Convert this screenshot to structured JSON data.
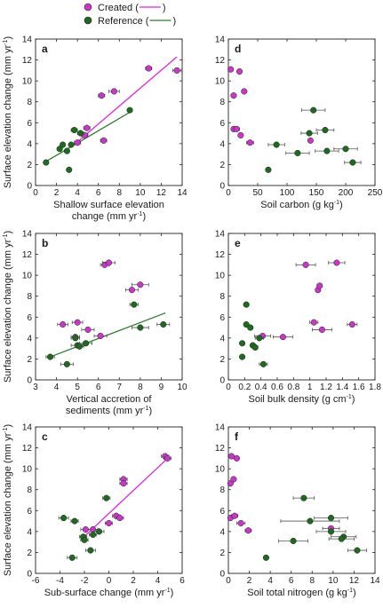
{
  "legend": {
    "items": [
      {
        "label": "Created (",
        "color": "#c837c8",
        "line": "#e026e0"
      },
      {
        "label": "Reference (",
        "color": "#1e6a1e",
        "line": "#2f7a2f"
      }
    ],
    "close": ")"
  },
  "colors": {
    "created": "#c837c8",
    "created_line": "#e026e0",
    "reference": "#1e6a1e",
    "reference_line": "#2f7a2f",
    "errorbar": "#555555"
  },
  "chart_data": [
    {
      "panel": "a",
      "type": "scatter",
      "xlabel": "Shallow surface elevation",
      "xlabel2": "change (mm yr",
      "ylabel": "Surface elevation change (mm yr",
      "xlim": [
        0,
        14
      ],
      "ylim": [
        0,
        14
      ],
      "xticks": [
        0,
        2,
        4,
        6,
        8,
        10,
        12,
        14
      ],
      "yticks": [
        0,
        2,
        4,
        6,
        8,
        10,
        12,
        14
      ],
      "series": [
        {
          "name": "Created",
          "points": [
            [
              4.0,
              4.1,
              0.3
            ],
            [
              4.9,
              5.5,
              0.3
            ],
            [
              4.7,
              4.8,
              0.3
            ],
            [
              6.5,
              4.3,
              0.3
            ],
            [
              6.3,
              8.6,
              0.3
            ],
            [
              7.5,
              9.0,
              0.5
            ],
            [
              10.8,
              11.2,
              0.3
            ],
            [
              13.5,
              11.0,
              0.4
            ]
          ],
          "fit": [
            [
              3.8,
              4.0
            ],
            [
              13.5,
              12.3
            ]
          ]
        },
        {
          "name": "Reference",
          "points": [
            [
              1.0,
              2.2,
              0.2
            ],
            [
              2.3,
              3.5,
              0.2
            ],
            [
              2.6,
              3.9,
              0.2
            ],
            [
              3.0,
              3.3,
              0.2
            ],
            [
              3.2,
              1.5,
              0.2
            ],
            [
              3.4,
              3.9,
              0.2
            ],
            [
              3.7,
              5.3,
              0.3
            ],
            [
              4.3,
              5.0,
              0.3
            ],
            [
              9.0,
              7.2,
              0.2
            ]
          ],
          "fit": [
            [
              1.0,
              2.3
            ],
            [
              9.0,
              7.0
            ]
          ]
        }
      ]
    },
    {
      "panel": "d",
      "type": "scatter",
      "xlabel": "Soil carbon (g kg",
      "xlim": [
        0,
        250
      ],
      "ylim": [
        0,
        14
      ],
      "xticks": [
        0,
        50,
        100,
        150,
        200,
        250
      ],
      "yticks": [
        0,
        2,
        4,
        6,
        8,
        10,
        12,
        14
      ],
      "series": [
        {
          "name": "Created",
          "points": [
            [
              4,
              11.1,
              3
            ],
            [
              19,
              10.9,
              3
            ],
            [
              9,
              8.6,
              3
            ],
            [
              27,
              9.0,
              4
            ],
            [
              9,
              5.4,
              3
            ],
            [
              14,
              5.4,
              5
            ],
            [
              21,
              4.8,
              4
            ],
            [
              37,
              4.1,
              6
            ],
            [
              140,
              4.3,
              3
            ]
          ]
        },
        {
          "name": "Reference",
          "points": [
            [
              145,
              7.2,
              20
            ],
            [
              165,
              5.3,
              15
            ],
            [
              138,
              5.0,
              14
            ],
            [
              82,
              3.9,
              14
            ],
            [
              200,
              3.5,
              20
            ],
            [
              168,
              3.3,
              20
            ],
            [
              118,
              3.1,
              20
            ],
            [
              212,
              2.2,
              14
            ],
            [
              68,
              1.5,
              4
            ]
          ]
        }
      ]
    },
    {
      "panel": "b",
      "type": "scatter",
      "xlabel": "Vertical accretion of",
      "xlabel2": "sediments (mm yr",
      "ylabel": "Surface elevation change (mm yr",
      "xlim": [
        3,
        10
      ],
      "ylim": [
        0,
        14
      ],
      "xticks": [
        3,
        4,
        5,
        6,
        7,
        8,
        9,
        10
      ],
      "yticks": [
        0,
        2,
        4,
        6,
        8,
        10,
        12,
        14
      ],
      "series": [
        {
          "name": "Created",
          "points": [
            [
              4.3,
              5.3,
              0.25
            ],
            [
              5.0,
              5.5,
              0.25
            ],
            [
              5.5,
              4.8,
              0.3
            ],
            [
              6.1,
              4.2,
              0.3
            ],
            [
              6.3,
              11.0,
              0.2
            ],
            [
              6.5,
              11.2,
              0.3
            ],
            [
              7.6,
              8.6,
              0.3
            ],
            [
              8.0,
              9.1,
              0.4
            ],
            [
              4.9,
              4.1,
              0.2
            ]
          ]
        },
        {
          "name": "Reference",
          "points": [
            [
              3.7,
              2.2,
              0.2
            ],
            [
              4.5,
              1.5,
              0.3
            ],
            [
              4.9,
              4.0,
              0.2
            ],
            [
              5.0,
              3.3,
              0.3
            ],
            [
              5.1,
              3.2,
              0.2
            ],
            [
              5.4,
              3.5,
              0.3
            ],
            [
              7.7,
              7.2,
              0.2
            ],
            [
              8.0,
              5.0,
              0.4
            ],
            [
              9.1,
              5.3,
              0.3
            ]
          ],
          "fit": [
            [
              3.7,
              2.2
            ],
            [
              9.2,
              6.4
            ]
          ]
        }
      ]
    },
    {
      "panel": "e",
      "type": "scatter",
      "xlabel": "Soil bulk density (g cm",
      "xlim": [
        0,
        1.8
      ],
      "ylim": [
        0,
        14
      ],
      "xticks": [
        0,
        0.2,
        0.4,
        0.6,
        0.8,
        1.0,
        1.2,
        1.4,
        1.6,
        1.8
      ],
      "yticks": [
        0,
        2,
        4,
        6,
        8,
        10,
        12,
        14
      ],
      "series": [
        {
          "name": "Created",
          "points": [
            [
              0.95,
              11.0,
              0.12
            ],
            [
              1.33,
              11.2,
              0.1
            ],
            [
              1.1,
              8.6,
              0.03
            ],
            [
              1.12,
              9.0,
              0.03
            ],
            [
              1.05,
              5.5,
              0.05
            ],
            [
              1.15,
              4.8,
              0.12
            ],
            [
              0.67,
              4.1,
              0.12
            ],
            [
              0.42,
              4.2,
              0.1
            ],
            [
              1.52,
              5.3,
              0.06
            ]
          ]
        },
        {
          "name": "Reference",
          "points": [
            [
              0.22,
              7.2,
              0.03
            ],
            [
              0.22,
              5.3,
              0.02
            ],
            [
              0.27,
              5.0,
              0.03
            ],
            [
              0.38,
              4.0,
              0.05
            ],
            [
              0.17,
              3.5,
              0.02
            ],
            [
              0.3,
              3.3,
              0.03
            ],
            [
              0.33,
              3.1,
              0.03
            ],
            [
              0.17,
              2.2,
              0.02
            ],
            [
              0.43,
              1.5,
              0.05
            ]
          ]
        }
      ]
    },
    {
      "panel": "c",
      "type": "scatter",
      "xlabel": "Sub-surface change (mm yr",
      "ylabel": "Surface elevation change (mm yr",
      "xlim": [
        -6,
        6
      ],
      "ylim": [
        0,
        14
      ],
      "xticks": [
        -6,
        -4,
        -2,
        0,
        2,
        4,
        6
      ],
      "yticks": [
        0,
        2,
        4,
        6,
        8,
        10,
        12,
        14
      ],
      "series": [
        {
          "name": "Created",
          "points": [
            [
              4.6,
              11.2,
              0.3
            ],
            [
              4.8,
              11.0,
              0.3
            ],
            [
              1.2,
              9.0,
              0.3
            ],
            [
              1.2,
              8.6,
              0.3
            ],
            [
              0.6,
              5.5,
              0.3
            ],
            [
              0.9,
              5.3,
              0.3
            ],
            [
              0.0,
              4.8,
              0.3
            ],
            [
              -1.3,
              4.2,
              0.4
            ],
            [
              -1.9,
              4.2,
              0.4
            ]
          ],
          "fit": [
            [
              -2.3,
              3.2
            ],
            [
              4.9,
              11.1
            ]
          ]
        },
        {
          "name": "Reference",
          "points": [
            [
              -3.7,
              5.3,
              0.4
            ],
            [
              -2.8,
              5.0,
              0.3
            ],
            [
              -0.2,
              7.2,
              0.3
            ],
            [
              -0.8,
              4.0,
              0.4
            ],
            [
              -1.3,
              3.7,
              0.3
            ],
            [
              -2.1,
              3.5,
              0.3
            ],
            [
              -2.0,
              3.2,
              0.3
            ],
            [
              -1.5,
              2.2,
              0.4
            ],
            [
              -3.0,
              1.5,
              0.4
            ]
          ]
        }
      ]
    },
    {
      "panel": "f",
      "type": "scatter",
      "xlabel": "Soil total nitrogen (g kg",
      "xlim": [
        0,
        14
      ],
      "ylim": [
        0,
        14
      ],
      "xticks": [
        0,
        2,
        4,
        6,
        8,
        10,
        12,
        14
      ],
      "yticks": [
        0,
        2,
        4,
        6,
        8,
        10,
        12,
        14
      ],
      "series": [
        {
          "name": "Created",
          "points": [
            [
              0.3,
              11.2,
              0.2
            ],
            [
              0.8,
              11.0,
              0.2
            ],
            [
              0.2,
              8.6,
              0.1
            ],
            [
              0.5,
              9.0,
              0.2
            ],
            [
              0.2,
              5.3,
              0.2
            ],
            [
              0.6,
              5.5,
              0.3
            ],
            [
              1.2,
              4.8,
              0.4
            ],
            [
              1.9,
              4.1,
              0.3
            ],
            [
              9.8,
              4.3,
              0.8
            ]
          ]
        },
        {
          "name": "Reference",
          "points": [
            [
              7.2,
              7.2,
              1.0
            ],
            [
              9.8,
              5.3,
              1.6
            ],
            [
              7.8,
              5.0,
              2.8
            ],
            [
              9.8,
              4.0,
              1.4
            ],
            [
              11.0,
              3.5,
              1.2
            ],
            [
              10.8,
              3.3,
              1.2
            ],
            [
              6.2,
              3.1,
              1.4
            ],
            [
              12.3,
              2.2,
              0.9
            ],
            [
              3.6,
              1.5,
              0.2
            ]
          ]
        }
      ]
    }
  ]
}
